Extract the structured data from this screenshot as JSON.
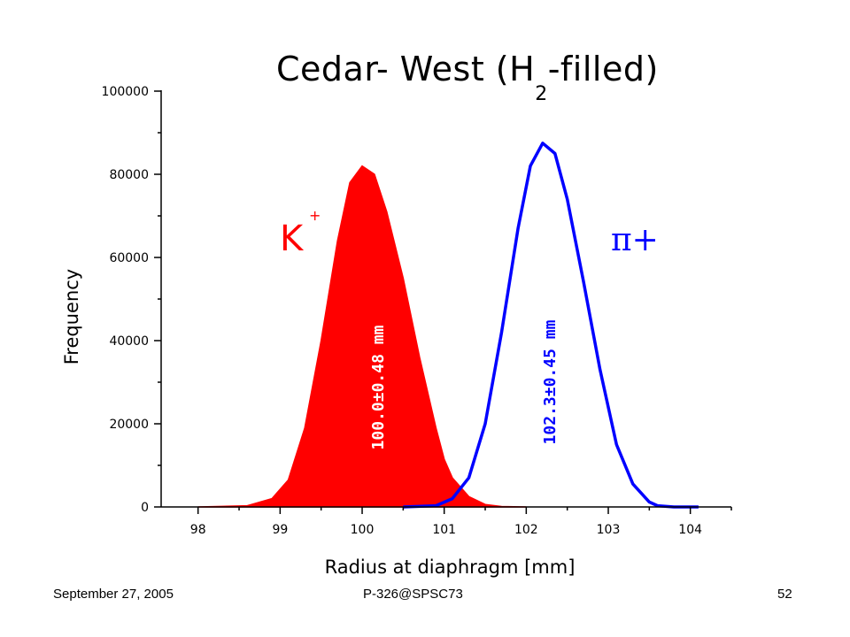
{
  "slide": {
    "title_pre": "Cedar- West (H",
    "title_sub": "2",
    "title_post": "-filled)",
    "footer_left": "September 27, 2005",
    "footer_center": "P-326@SPSC73",
    "footer_right": "52"
  },
  "chart_data": {
    "type": "area",
    "xlabel": "Radius at diaphragm [mm]",
    "ylabel": "Frequency",
    "xlim": [
      97.55,
      104.5
    ],
    "ylim": [
      0,
      100000
    ],
    "x_ticks": [
      98,
      99,
      100,
      101,
      102,
      103,
      104
    ],
    "y_ticks": [
      0,
      20000,
      40000,
      60000,
      80000,
      100000
    ],
    "grid": false,
    "series": [
      {
        "name": "K+",
        "label_main": "K",
        "label_sup": "+",
        "color": "#ff0000",
        "filled": true,
        "annotation": "100.0±0.48 mm",
        "x": [
          98.0,
          98.6,
          98.9,
          99.1,
          99.3,
          99.5,
          99.7,
          99.85,
          100.0,
          100.15,
          100.3,
          100.5,
          100.7,
          100.9,
          101.0,
          101.1,
          101.3,
          101.5,
          101.7,
          102.0
        ],
        "y": [
          0,
          300,
          2000,
          6500,
          19000,
          40000,
          64000,
          78000,
          82000,
          80000,
          71000,
          55000,
          36000,
          19000,
          11500,
          7000,
          2500,
          600,
          100,
          0
        ]
      },
      {
        "name": "π+",
        "label_main": "π+",
        "label_sup": "",
        "color": "#0000ff",
        "filled": false,
        "annotation": "102.3±0.45 mm",
        "x": [
          100.5,
          100.9,
          101.1,
          101.3,
          101.5,
          101.7,
          101.9,
          102.05,
          102.2,
          102.35,
          102.5,
          102.7,
          102.9,
          103.1,
          103.3,
          103.5,
          103.6,
          103.8,
          104.1
        ],
        "y": [
          0,
          300,
          2000,
          7000,
          20000,
          42000,
          67000,
          82000,
          87500,
          85000,
          74000,
          54000,
          33000,
          15000,
          5500,
          1200,
          300,
          0,
          0
        ]
      }
    ]
  }
}
